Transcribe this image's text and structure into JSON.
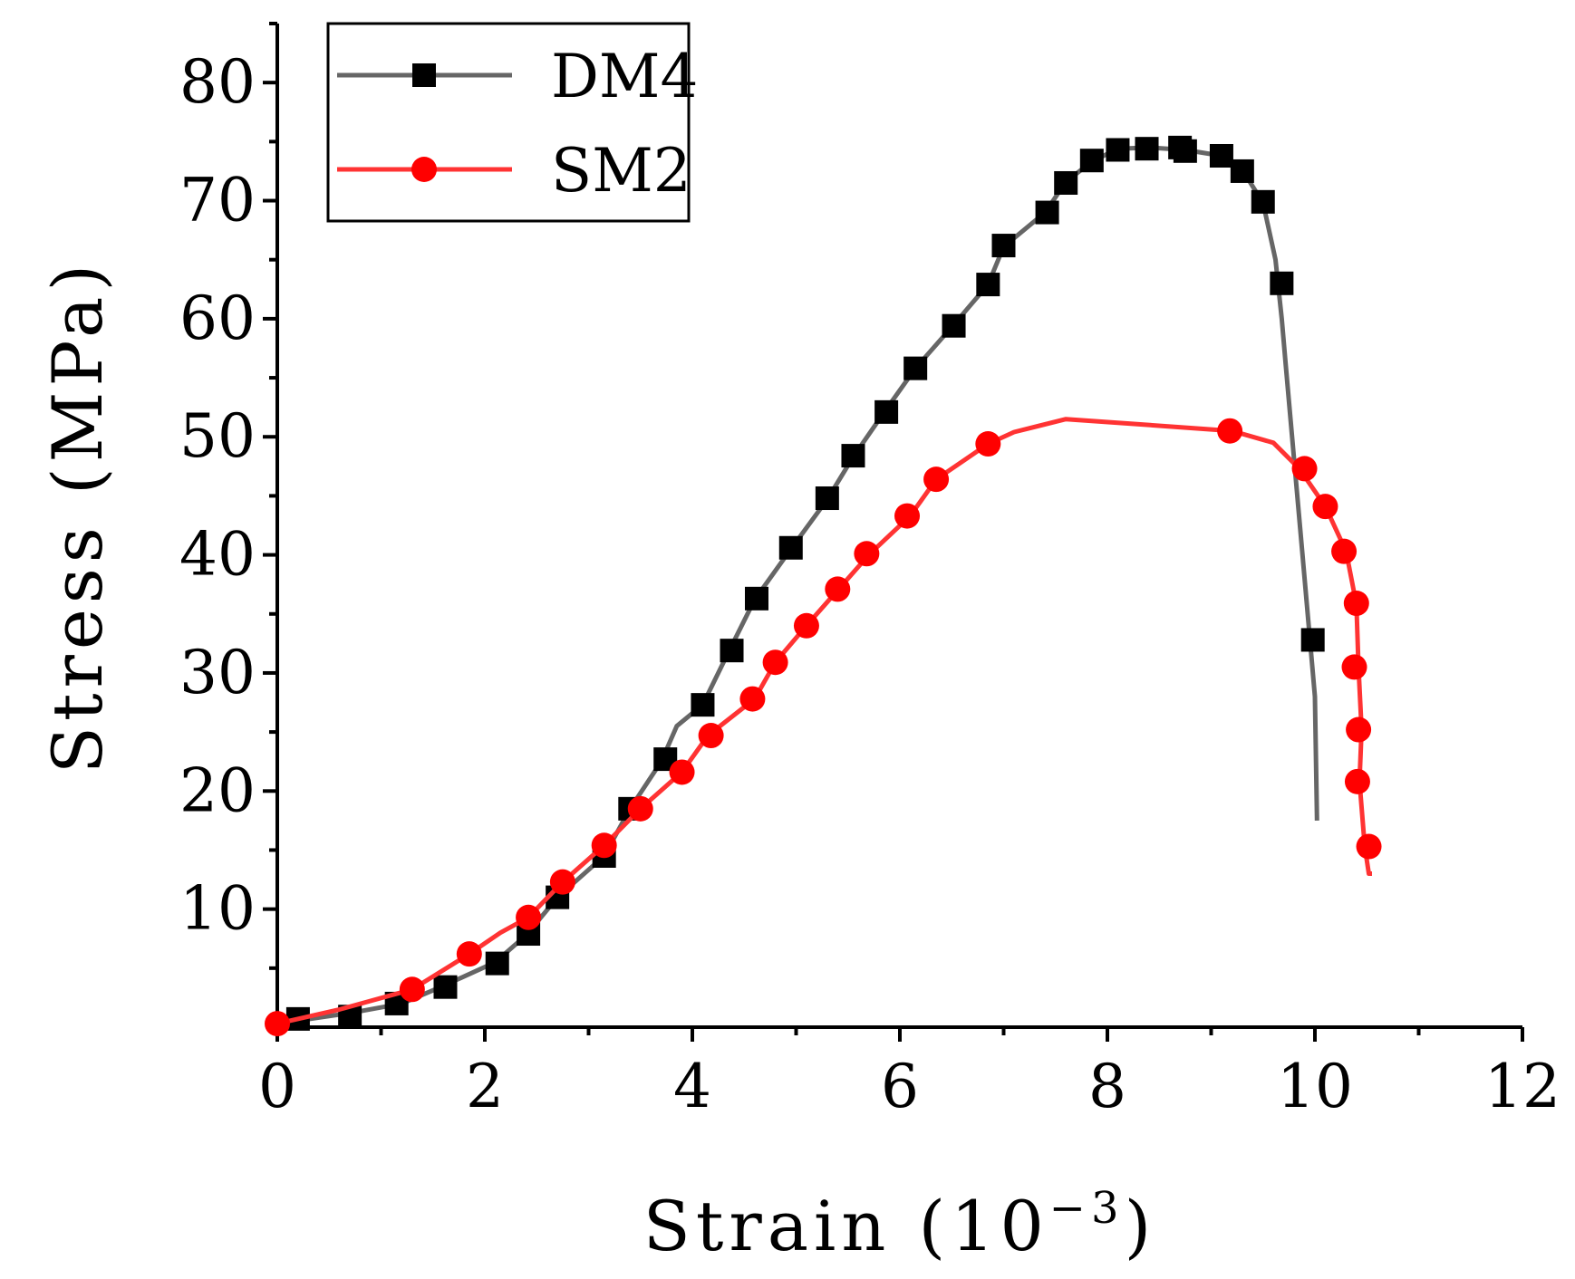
{
  "chart_data": {
    "type": "line",
    "title": "",
    "xlabel": "Strain (10",
    "xlabel_exponent": "−3",
    "xlabel_close": ")",
    "ylabel": "Stress (MPa)",
    "xlim": [
      0,
      12
    ],
    "ylim": [
      0,
      85
    ],
    "x_ticks": [
      0,
      2,
      4,
      6,
      8,
      10,
      12
    ],
    "x_tick_labels": [
      "0",
      "2",
      "4",
      "6",
      "8",
      "10",
      "12"
    ],
    "y_ticks": [
      10,
      20,
      30,
      40,
      50,
      60,
      70,
      80
    ],
    "y_tick_labels": [
      "10",
      "20",
      "30",
      "40",
      "50",
      "60",
      "70",
      "80"
    ],
    "grid": false,
    "legend_position": "top-left",
    "series": [
      {
        "name": "DM4",
        "color": "#666666",
        "marker_color": "#000000",
        "marker": "square",
        "line_x": [
          0.0,
          0.7,
          1.2,
          1.6,
          2.1,
          2.4,
          2.7,
          3.15,
          3.4,
          3.7,
          3.85,
          4.1,
          4.35,
          4.6,
          4.95,
          5.3,
          5.55,
          5.85,
          6.15,
          6.5,
          6.85,
          7.0,
          7.4,
          7.6,
          7.85,
          8.1,
          8.4,
          8.75,
          9.1,
          9.3,
          9.5,
          9.62,
          9.68,
          9.72,
          9.8,
          9.9,
          10.0,
          10.02
        ],
        "line_y": [
          0.3,
          1.2,
          2.0,
          3.5,
          5.5,
          7.8,
          11.0,
          14.5,
          18.5,
          22.5,
          25.5,
          27.3,
          31.8,
          36.2,
          40.5,
          44.7,
          48.3,
          52.1,
          55.8,
          59.3,
          62.9,
          66.1,
          69.0,
          71.6,
          73.3,
          74.4,
          74.5,
          74.3,
          73.8,
          72.6,
          69.8,
          65.0,
          60.0,
          56.0,
          48.0,
          38.0,
          28.0,
          17.5
        ],
        "marker_x": [
          0.2,
          0.7,
          1.15,
          1.62,
          2.12,
          2.42,
          2.7,
          3.15,
          3.4,
          3.74,
          4.1,
          4.38,
          4.62,
          4.95,
          5.3,
          5.55,
          5.87,
          6.15,
          6.52,
          6.85,
          7.0,
          7.42,
          7.6,
          7.85,
          8.1,
          8.38,
          8.7,
          8.75,
          9.1,
          9.3,
          9.5,
          9.68,
          9.98
        ],
        "marker_y": [
          0.7,
          0.9,
          2.0,
          3.4,
          5.4,
          7.9,
          11.0,
          14.5,
          18.5,
          22.7,
          27.3,
          31.9,
          36.3,
          40.6,
          44.8,
          48.4,
          52.1,
          55.8,
          59.4,
          62.9,
          66.2,
          69.0,
          71.5,
          73.4,
          74.3,
          74.4,
          74.5,
          74.2,
          73.8,
          72.5,
          69.9,
          63.0,
          32.8
        ]
      },
      {
        "name": "SM2",
        "color": "#ff3333",
        "marker_color": "#ff0000",
        "marker": "circle",
        "line_x": [
          0.0,
          0.6,
          1.3,
          1.85,
          2.15,
          2.42,
          2.75,
          3.15,
          3.5,
          3.9,
          4.15,
          4.6,
          4.8,
          5.1,
          5.4,
          5.7,
          6.1,
          6.35,
          6.85,
          7.1,
          7.6,
          9.2,
          9.6,
          9.85,
          10.1,
          10.3,
          10.4,
          10.42,
          10.45,
          10.43,
          10.48,
          10.52,
          10.55
        ],
        "line_y": [
          0.3,
          1.5,
          3.2,
          6.2,
          8.0,
          9.3,
          12.3,
          15.4,
          18.5,
          21.6,
          24.7,
          27.8,
          30.9,
          34.0,
          37.0,
          40.0,
          43.3,
          46.4,
          49.4,
          50.4,
          51.5,
          50.5,
          49.5,
          47.3,
          44.1,
          40.3,
          35.8,
          30.5,
          25.2,
          20.8,
          15.3,
          13.0,
          13.0
        ],
        "marker_x": [
          0.0,
          1.3,
          1.85,
          2.42,
          2.75,
          3.15,
          3.5,
          3.9,
          4.18,
          4.58,
          4.8,
          5.1,
          5.4,
          5.68,
          6.07,
          6.35,
          6.85,
          9.18,
          9.9,
          10.1,
          10.28,
          10.4,
          10.38,
          10.42,
          10.41,
          10.52
        ],
        "marker_y": [
          0.3,
          3.2,
          6.2,
          9.3,
          12.3,
          15.4,
          18.5,
          21.6,
          24.7,
          27.8,
          30.9,
          34.0,
          37.1,
          40.1,
          43.3,
          46.4,
          49.4,
          50.5,
          47.3,
          44.1,
          40.3,
          35.9,
          30.5,
          25.2,
          20.8,
          15.3
        ]
      }
    ]
  }
}
